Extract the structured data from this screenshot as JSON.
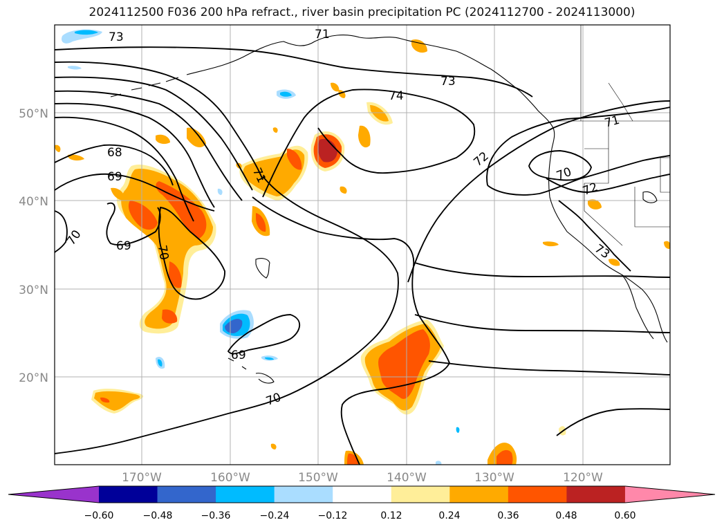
{
  "title": "2024112500 F036 200 hPa refract., river basin precipitation PC (2024112700 - 2024113000)",
  "map": {
    "lat_labels": [
      "50°N",
      "40°N",
      "30°N",
      "20°N"
    ],
    "lon_labels": [
      "170°W",
      "160°W",
      "150°W",
      "140°W",
      "130°W",
      "120°W"
    ],
    "contour_labels": [
      "73",
      "71",
      "73",
      "74",
      "68",
      "69",
      "70",
      "69",
      "70",
      "71",
      "72",
      "70",
      "71",
      "72",
      "73",
      "69",
      "70"
    ],
    "colors": {
      "contour": "#000000",
      "grid": "#b0b0b0",
      "coast": "#000000"
    }
  },
  "colorbar": {
    "ticks": [
      "−0.60",
      "−0.48",
      "−0.36",
      "−0.24",
      "−0.12",
      "0.12",
      "0.24",
      "0.36",
      "0.48",
      "0.60"
    ],
    "colors": [
      "#9933cc",
      "#000099",
      "#3366cc",
      "#00bbff",
      "#aaddff",
      "#ffffff",
      "#ffee99",
      "#ffaa00",
      "#ff5500",
      "#bb2222",
      "#ff88aa"
    ]
  }
}
